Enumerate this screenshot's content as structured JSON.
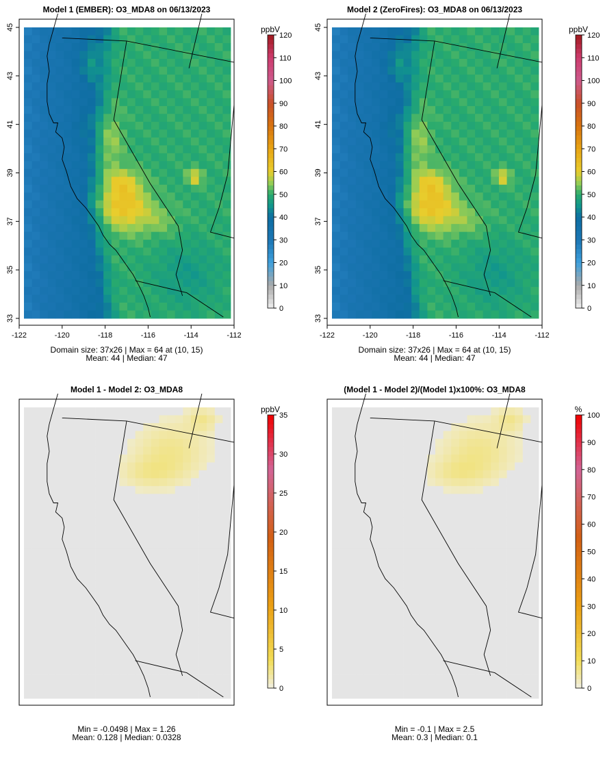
{
  "chart_data": [
    {
      "type": "heatmap",
      "title": "Model 1 (EMBER): O3_MDA8 on 06/13/2023",
      "units": "ppbV",
      "xlim": [
        -122,
        -112
      ],
      "ylim": [
        33,
        45
      ],
      "x_ticks": [
        "-122",
        "-120",
        "-118",
        "-116",
        "-114",
        "-112"
      ],
      "y_ticks": [
        "33",
        "35",
        "37",
        "39",
        "41",
        "43",
        "45"
      ],
      "show_axes": true,
      "colorbar": {
        "min": 0,
        "max": 120,
        "ticks": [
          "0",
          "10",
          "20",
          "30",
          "40",
          "50",
          "60",
          "70",
          "80",
          "90",
          "100",
          "110",
          "120"
        ],
        "palette": "ozone"
      },
      "stats_line1": "Domain size: 37x26 | Max = 64 at (10, 15)",
      "stats_line2": "Mean: 44 |  Median: 47",
      "field": {
        "variant": "absolute",
        "mean": 44,
        "median": 47,
        "max": 64
      }
    },
    {
      "type": "heatmap",
      "title": "Model 2 (ZeroFires): O3_MDA8 on 06/13/2023",
      "units": "ppbV",
      "xlim": [
        -122,
        -112
      ],
      "ylim": [
        33,
        45
      ],
      "x_ticks": [
        "-122",
        "-120",
        "-118",
        "-116",
        "-114",
        "-112"
      ],
      "y_ticks": [
        "33",
        "35",
        "37",
        "39",
        "41",
        "43",
        "45"
      ],
      "show_axes": true,
      "colorbar": {
        "min": 0,
        "max": 120,
        "ticks": [
          "0",
          "10",
          "20",
          "30",
          "40",
          "50",
          "60",
          "70",
          "80",
          "90",
          "100",
          "110",
          "120"
        ],
        "palette": "ozone"
      },
      "stats_line1": "Domain size: 37x26 | Max = 64 at (10, 15)",
      "stats_line2": "Mean: 44 |  Median: 47",
      "field": {
        "variant": "absolute",
        "mean": 44,
        "median": 47,
        "max": 64
      }
    },
    {
      "type": "heatmap",
      "title": "Model 1 - Model 2: O3_MDA8",
      "units": "ppbV",
      "xlim": [
        -122,
        -112
      ],
      "ylim": [
        33,
        45
      ],
      "show_axes": false,
      "colorbar": {
        "min": 0,
        "max": 35,
        "ticks": [
          "0",
          "5",
          "10",
          "15",
          "20",
          "25",
          "30",
          "35"
        ],
        "palette": "diff"
      },
      "stats_line1": "Min = -0.0498 | Max = 1.26",
      "stats_line2": "Mean: 0.128 |  Median: 0.0328",
      "field": {
        "variant": "difference",
        "min": -0.0498,
        "max": 1.26
      }
    },
    {
      "type": "heatmap",
      "title": "(Model 1 - Model 2)/(Model 1)x100%: O3_MDA8",
      "units": "%",
      "xlim": [
        -122,
        -112
      ],
      "ylim": [
        33,
        45
      ],
      "show_axes": false,
      "colorbar": {
        "min": 0,
        "max": 100,
        "ticks": [
          "0",
          "10",
          "20",
          "30",
          "40",
          "50",
          "60",
          "70",
          "80",
          "90",
          "100"
        ],
        "palette": "diff"
      },
      "stats_line1": "Min = -0.1 | Max = 2.5",
      "stats_line2": "Mean: 0.3 |  Median: 0.1",
      "field": {
        "variant": "percent",
        "min": -0.1,
        "max": 2.5
      }
    }
  ]
}
